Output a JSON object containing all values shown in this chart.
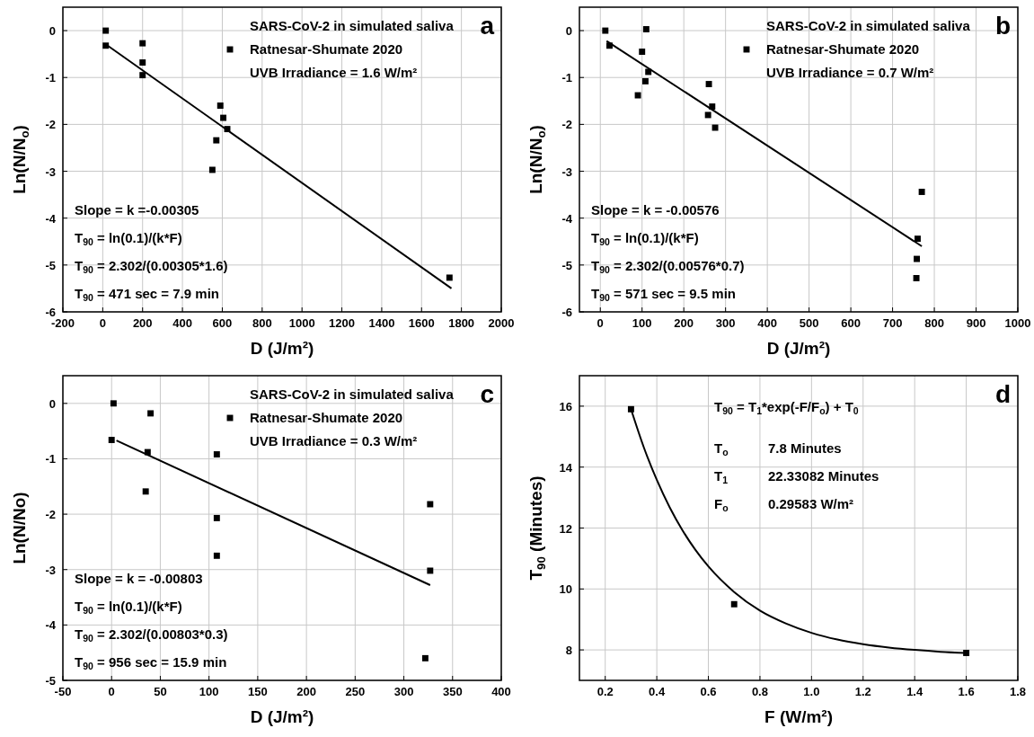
{
  "chart_data": [
    {
      "type": "scatter",
      "title": "a",
      "xlabel": "D (J/m²)",
      "ylabel": "Ln(N/N$_{o}$)",
      "legend_title": "SARS-CoV-2 in simulated saliva",
      "legend": "top right",
      "grid": true,
      "marker": "square",
      "xlim": [
        -200,
        2000
      ],
      "xticks": [
        -200,
        0,
        200,
        400,
        600,
        800,
        1000,
        1200,
        1400,
        1600,
        1800,
        2000
      ],
      "ylim": [
        -6,
        0.5
      ],
      "yticks": [
        -6,
        -5,
        -4,
        -3,
        -2,
        -1,
        0
      ],
      "series": [
        {
          "name": "Ratnesar-Shumate 2020",
          "color": "#000000",
          "x": [
            15,
            15,
            200,
            200,
            200,
            590,
            605,
            625,
            570,
            550,
            1740
          ],
          "values": [
            0,
            -0.32,
            -0.27,
            -0.68,
            -0.95,
            -1.6,
            -1.86,
            -2.1,
            -2.34,
            -2.97,
            -5.27
          ]
        },
        {
          "type": "line",
          "marker": "none",
          "color": "#000000",
          "x": [
            15,
            1750
          ],
          "values": [
            -0.29,
            -5.5
          ]
        }
      ],
      "annotations": [
        "UVB Irradiance = 1.6 W/m²",
        "Slope = k =-0.00305",
        "T$_{90}$  = ln(0.1)/(k*F)",
        "T$_{90}$ = 2.302/(0.00305*1.6)",
        "T$_{90}$ = 471 sec = 7.9 min"
      ]
    },
    {
      "type": "scatter",
      "title": "b",
      "xlabel": "D (J/m²)",
      "ylabel": "Ln(N/N$_{o}$)",
      "legend_title": "SARS-CoV-2 in simulated saliva",
      "legend": "top right",
      "grid": true,
      "marker": "square",
      "xlim": [
        -50,
        1000
      ],
      "xticks": [
        0,
        100,
        200,
        300,
        400,
        500,
        600,
        700,
        800,
        900,
        1000
      ],
      "ylim": [
        -6,
        0.5
      ],
      "yticks": [
        -6,
        -5,
        -4,
        -3,
        -2,
        -1,
        0
      ],
      "series": [
        {
          "name": "Ratnesar-Shumate 2020",
          "color": "#000000",
          "x": [
            12,
            22,
            110,
            100,
            115,
            108,
            90,
            260,
            268,
            258,
            275,
            770,
            760,
            758,
            757
          ],
          "values": [
            0,
            -0.32,
            0.03,
            -0.45,
            -0.88,
            -1.08,
            -1.38,
            -1.14,
            -1.62,
            -1.8,
            -2.07,
            -3.44,
            -4.44,
            -4.87,
            -5.28
          ]
        },
        {
          "type": "line",
          "marker": "none",
          "color": "#000000",
          "x": [
            15,
            770
          ],
          "values": [
            -0.22,
            -4.6
          ]
        }
      ],
      "annotations": [
        "UVB Irradiance = 0.7 W/m²",
        "Slope = k = -0.00576",
        "T$_{90}$  = ln(0.1)/(k*F)",
        "T$_{90}$ = 2.302/(0.00576*0.7)",
        "T$_{90}$ = 571 sec = 9.5 min"
      ]
    },
    {
      "type": "scatter",
      "title": "c",
      "xlabel": "D (J/m²)",
      "ylabel": "Ln(N/No)",
      "legend_title": "SARS-CoV-2 in simulated saliva",
      "legend": "top right",
      "grid": true,
      "marker": "square",
      "xlim": [
        -50,
        400
      ],
      "xticks": [
        -50,
        0,
        50,
        100,
        150,
        200,
        250,
        300,
        350,
        400
      ],
      "ylim": [
        -5,
        0.5
      ],
      "yticks": [
        -5,
        -4,
        -3,
        -2,
        -1,
        0
      ],
      "series": [
        {
          "name": "Ratnesar-Shumate 2020",
          "color": "#000000",
          "x": [
            2,
            0,
            40,
            37,
            35,
            108,
            108,
            108,
            327,
            327,
            322
          ],
          "values": [
            0,
            -0.66,
            -0.18,
            -0.88,
            -1.59,
            -0.92,
            -2.07,
            -2.75,
            -1.82,
            -3.02,
            -4.6
          ]
        },
        {
          "type": "line",
          "marker": "none",
          "color": "#000000",
          "x": [
            5,
            327
          ],
          "values": [
            -0.67,
            -3.28
          ]
        }
      ],
      "annotations": [
        "UVB Irradiance = 0.3 W/m²",
        "Slope = k = -0.00803",
        "T$_{90}$  = ln(0.1)/(k*F)",
        "T$_{90}$ = 2.302/(0.00803*0.3)",
        "T$_{90}$ = 956 sec = 15.9 min"
      ]
    },
    {
      "type": "scatter",
      "title": "d",
      "xlabel": "F (W/m²)",
      "ylabel": "T$_{90}$ (Minutes)",
      "grid": true,
      "marker": "square",
      "xlim": [
        0.1,
        1.8
      ],
      "xticks": [
        0.2,
        0.4,
        0.6,
        0.8,
        {
          "value": 1,
          "label": "1.0"
        },
        1.2,
        1.4,
        1.6,
        1.8
      ],
      "ylim": [
        7,
        17
      ],
      "yticks": [
        8,
        10,
        12,
        14,
        16
      ],
      "series": [
        {
          "color": "#000000",
          "x": [
            0.3,
            0.7,
            1.6
          ],
          "values": [
            15.9,
            9.5,
            7.9
          ]
        },
        {
          "type": "line",
          "marker": "none",
          "color": "#000000",
          "x": [
            0.3,
            0.35,
            0.4,
            0.45,
            0.5,
            0.55,
            0.6,
            0.7,
            0.8,
            0.9,
            1.0,
            1.1,
            1.2,
            1.3,
            1.4,
            1.5,
            1.6
          ],
          "values": [
            15.9,
            14.64,
            13.58,
            12.68,
            11.92,
            11.28,
            10.74,
            9.9,
            9.29,
            8.87,
            8.56,
            8.34,
            8.19,
            8.08,
            8.0,
            7.94,
            7.9
          ]
        }
      ],
      "annotations": [
        "T$_{90}$ = T$_{1}$*exp(-F/F$_{o}$) + T$_{0}$",
        "T$_{o}$\t7.8 Minutes",
        "T$_{1}$\t22.33082 Minutes",
        "F$_{o}$\t0.29583 W/m²"
      ]
    }
  ]
}
